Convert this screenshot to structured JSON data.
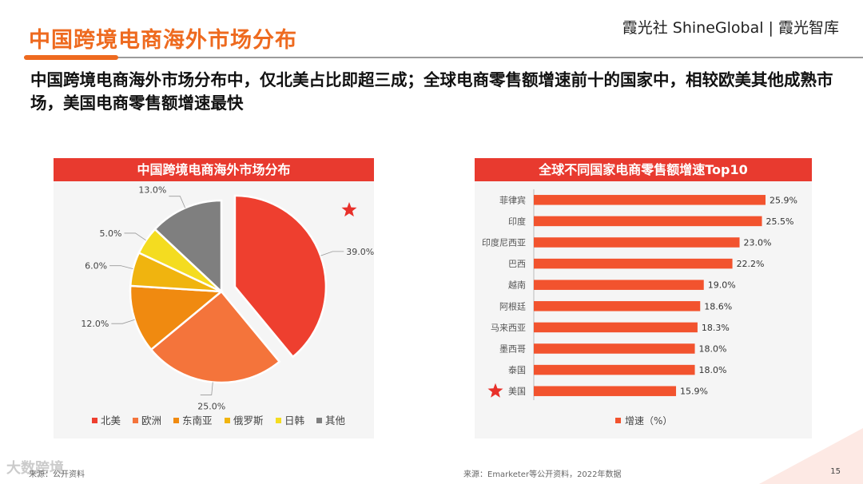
{
  "page": {
    "title": "中国跨境电商海外市场分布",
    "brand": "霞光社 ShineGlobal | 霞光智库",
    "subtitle": "中国跨境电商海外市场分布中，仅北美占比即超三成；全球电商零售额增速前十的国家中，相较欧美其他成熟市场，美国电商零售额增速最快",
    "source_left": "来源：公开资料",
    "source_right": "来源：Emarketer等公开资料，2022年数据",
    "page_number": "15",
    "watermark": "大数跨境"
  },
  "colors": {
    "accent": "#ee6a1f",
    "header_red": "#e83a2f",
    "bar": "#f2532e",
    "star": "#e8302a"
  },
  "chart_data": [
    {
      "type": "pie",
      "title": "中国跨境电商海外市场分布",
      "unit": "%",
      "slices": [
        {
          "label": "北美",
          "value": 39.0,
          "value_label": "39.0%",
          "color": "#ee3f2f",
          "exploded": true,
          "starred": true
        },
        {
          "label": "欧洲",
          "value": 25.0,
          "value_label": "25.0%",
          "color": "#f4743b"
        },
        {
          "label": "东南亚",
          "value": 12.0,
          "value_label": "12.0%",
          "color": "#f08a10"
        },
        {
          "label": "俄罗斯",
          "value": 6.0,
          "value_label": "6.0%",
          "color": "#f0b40f"
        },
        {
          "label": "日韩",
          "value": 5.0,
          "value_label": "5.0%",
          "color": "#f4dc20"
        },
        {
          "label": "其他",
          "value": 13.0,
          "value_label": "13.0%",
          "color": "#7f7f7f"
        }
      ],
      "legend_position": "bottom"
    },
    {
      "type": "bar",
      "orientation": "horizontal",
      "title": "全球不同国家电商零售额增速Top10",
      "categories": [
        "菲律宾",
        "印度",
        "印度尼西亚",
        "巴西",
        "越南",
        "阿根廷",
        "马来西亚",
        "墨西哥",
        "泰国",
        "美国"
      ],
      "values": [
        25.9,
        25.5,
        23.0,
        22.2,
        19.0,
        18.6,
        18.3,
        18.0,
        18.0,
        15.9
      ],
      "value_labels": [
        "25.9%",
        "25.5%",
        "23.0%",
        "22.2%",
        "19.0%",
        "18.6%",
        "18.3%",
        "18.0%",
        "18.0%",
        "15.9%"
      ],
      "starred_category": "美国",
      "series_name": "增速（%）",
      "xlim": [
        0,
        28
      ],
      "legend_position": "bottom"
    }
  ]
}
